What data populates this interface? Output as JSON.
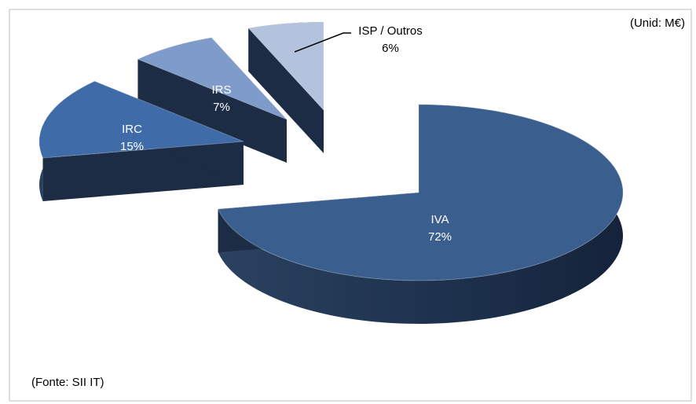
{
  "chart_data": {
    "type": "pie",
    "style": "3d-exploded",
    "categories": [
      "IVA",
      "IRC",
      "IRS",
      "ISP / Outros"
    ],
    "values": [
      72,
      15,
      7,
      6
    ],
    "value_labels": [
      "72%",
      "15%",
      "7%",
      "6%"
    ],
    "colors": [
      "#3a5f8f",
      "#3f6ca8",
      "#7f9bca",
      "#b4c3dd"
    ],
    "annotations": {
      "unit": "(Unid: M€)",
      "source": "(Fonte: SII IT)"
    }
  }
}
